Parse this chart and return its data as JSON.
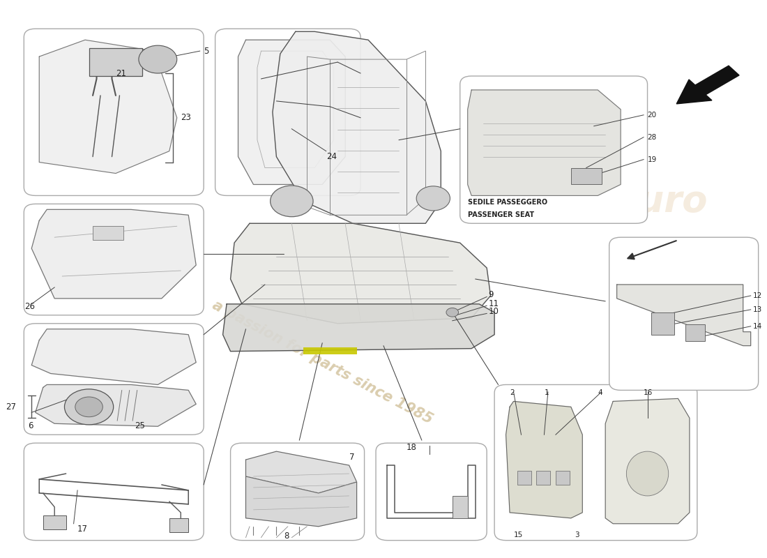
{
  "bg": "#ffffff",
  "box_fc": "#ffffff",
  "box_ec": "#aaaaaa",
  "line_c": "#333333",
  "part_c": "#222222",
  "wm_color": "#d4c4a0",
  "wm_text": "a passion for parts since 1985",
  "arrow_color": "#111111",
  "ps_label1": "SEDILE PASSEGGERO",
  "ps_label2": "PASSENGER SEAT",
  "boxes": {
    "headrest": [
      0.03,
      0.65,
      0.235,
      0.3
    ],
    "backpad": [
      0.28,
      0.65,
      0.19,
      0.3
    ],
    "cushion1": [
      0.03,
      0.435,
      0.235,
      0.2
    ],
    "cushion2": [
      0.03,
      0.22,
      0.235,
      0.2
    ],
    "frame": [
      0.03,
      0.03,
      0.235,
      0.175
    ],
    "ecu": [
      0.3,
      0.03,
      0.175,
      0.175
    ],
    "wire": [
      0.49,
      0.03,
      0.145,
      0.175
    ],
    "latch": [
      0.645,
      0.03,
      0.265,
      0.28
    ],
    "rail": [
      0.795,
      0.3,
      0.195,
      0.275
    ],
    "passenger": [
      0.6,
      0.6,
      0.245,
      0.265
    ]
  },
  "seat_lines_color": "#555555",
  "callout_color": "#444444",
  "label_fontsize": 8.5,
  "small_fontsize": 7.5
}
